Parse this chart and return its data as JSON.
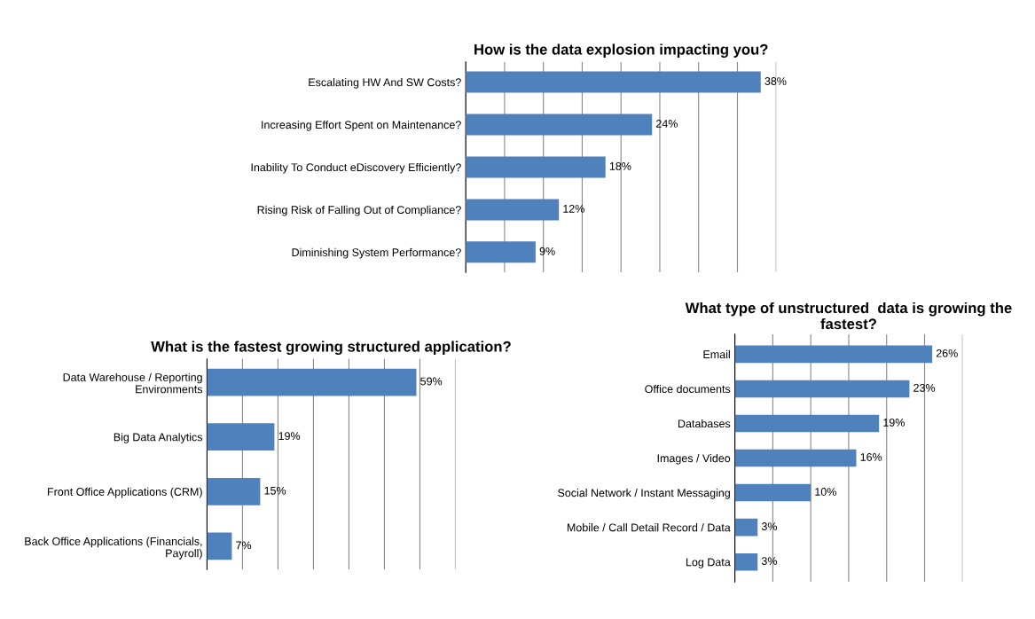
{
  "chart_data": [
    {
      "type": "bar",
      "orientation": "horizontal",
      "title": "How is the data explosion impacting you?",
      "categories": [
        "Escalating HW And SW Costs?",
        "Increasing Effort Spent on Maintenance?",
        "Inability To Conduct eDiscovery Efficiently?",
        "Rising Risk of Falling Out of Compliance?",
        "Diminishing System Performance?"
      ],
      "values": [
        38,
        24,
        18,
        12,
        9
      ],
      "value_labels": [
        "38%",
        "24%",
        "18%",
        "12%",
        "9%"
      ],
      "color": "#4f81bd",
      "xlim": [
        0,
        40
      ],
      "xticks": [
        {
          "value": 0,
          "label": null
        },
        {
          "value": 5,
          "label": null
        },
        {
          "value": 10,
          "label": null
        },
        {
          "value": 15,
          "label": null
        },
        {
          "value": 20,
          "label": null
        },
        {
          "value": 25,
          "label": null
        },
        {
          "value": 30,
          "label": null
        },
        {
          "value": 35,
          "label": null
        },
        {
          "value": 40,
          "label": null
        }
      ],
      "grid": "x",
      "tick_labels": "y"
    },
    {
      "type": "bar",
      "orientation": "horizontal",
      "title": "What is the fastest growing structured application?",
      "categories": [
        "Data Warehouse / Reporting Environments",
        "Big Data Analytics",
        "Front Office Applications (CRM)",
        "Back Office Applications (Financials, Payroll)"
      ],
      "values": [
        59,
        19,
        15,
        7
      ],
      "value_labels": [
        "59%",
        "19%",
        "15%",
        "7%"
      ],
      "color": "#4f81bd",
      "xlim": [
        0,
        70
      ],
      "xticks": [
        {
          "value": 0,
          "label": null
        },
        {
          "value": 10,
          "label": null
        },
        {
          "value": 20,
          "label": null
        },
        {
          "value": 30,
          "label": null
        },
        {
          "value": 40,
          "label": null
        },
        {
          "value": 50,
          "label": null
        },
        {
          "value": 60,
          "label": null
        },
        {
          "value": 70,
          "label": null
        }
      ],
      "grid": "x",
      "tick_labels": "y"
    },
    {
      "type": "bar",
      "orientation": "horizontal",
      "title": "What type of unstructured  data is growing the fastest?",
      "categories": [
        "Email",
        "Office documents",
        "Databases",
        "Images / Video",
        "Social Network / Instant Messaging",
        "Mobile / Call Detail Record / Data",
        "Log Data"
      ],
      "values": [
        26,
        23,
        19,
        16,
        10,
        3,
        3
      ],
      "value_labels": [
        "26%",
        "23%",
        "19%",
        "16%",
        "10%",
        "3%",
        "3%"
      ],
      "color": "#4f81bd",
      "xlim": [
        0,
        30
      ],
      "xticks": [
        {
          "value": 0,
          "label": null
        },
        {
          "value": 5,
          "label": null
        },
        {
          "value": 10,
          "label": null
        },
        {
          "value": 15,
          "label": null
        },
        {
          "value": 20,
          "label": null
        },
        {
          "value": 25,
          "label": null
        },
        {
          "value": 30,
          "label": null
        }
      ],
      "grid": "x",
      "tick_labels": "y"
    }
  ]
}
